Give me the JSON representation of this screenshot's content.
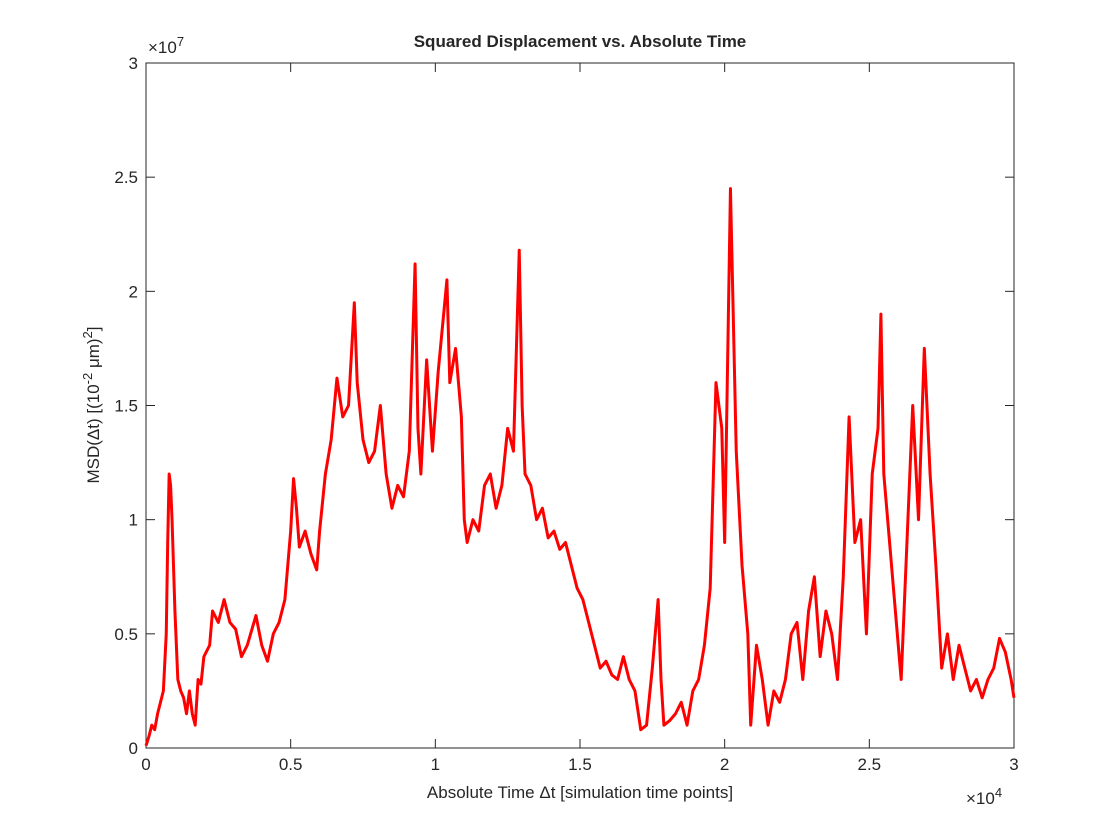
{
  "chart_data": {
    "type": "line",
    "title": "Squared Displacement vs. Absolute Time",
    "xlabel": "Absolute Time Δt [simulation time points]",
    "ylabel": [
      "MSD(Δt) [(10",
      "-2",
      " μm)",
      "2",
      "]"
    ],
    "x_multiplier": {
      "base": "×10",
      "exponent": "4"
    },
    "y_multiplier": {
      "base": "×10",
      "exponent": "7"
    },
    "xlim": [
      0,
      30000
    ],
    "ylim": [
      0,
      30000000
    ],
    "xticks": [
      0,
      {
        "value": 5000,
        "label": "0.5"
      },
      {
        "value": 10000,
        "label": "1"
      },
      {
        "value": 15000,
        "label": "1.5"
      },
      {
        "value": 20000,
        "label": "2"
      },
      {
        "value": 25000,
        "label": "2.5"
      },
      {
        "value": 30000,
        "label": "3"
      }
    ],
    "yticks": [
      0,
      {
        "value": 5000000,
        "label": "0.5"
      },
      {
        "value": 10000000,
        "label": "1"
      },
      {
        "value": 15000000,
        "label": "1.5"
      },
      {
        "value": 20000000,
        "label": "2"
      },
      {
        "value": 25000000,
        "label": "2.5"
      },
      {
        "value": 30000000,
        "label": "3"
      }
    ],
    "grid": false,
    "series": [
      {
        "color": "#ff0000",
        "x": [
          0,
          100,
          200,
          300,
          400,
          500,
          600,
          700,
          750,
          800,
          850,
          900,
          1000,
          1100,
          1200,
          1300,
          1400,
          1500,
          1600,
          1700,
          1800,
          1900,
          2000,
          2200,
          2300,
          2500,
          2700,
          2900,
          3100,
          3300,
          3500,
          3800,
          4000,
          4200,
          4400,
          4600,
          4800,
          5000,
          5100,
          5200,
          5300,
          5500,
          5700,
          5900,
          6000,
          6200,
          6400,
          6600,
          6800,
          7000,
          7200,
          7300,
          7500,
          7700,
          7900,
          8100,
          8300,
          8500,
          8700,
          8900,
          9100,
          9300,
          9400,
          9500,
          9700,
          9900,
          10100,
          10400,
          10500,
          10700,
          10900,
          11000,
          11100,
          11300,
          11500,
          11700,
          11900,
          12100,
          12300,
          12500,
          12700,
          12900,
          13000,
          13100,
          13300,
          13500,
          13700,
          13900,
          14100,
          14300,
          14500,
          14700,
          14900,
          15100,
          15300,
          15500,
          15700,
          15900,
          16100,
          16300,
          16500,
          16700,
          16900,
          17100,
          17300,
          17500,
          17700,
          17800,
          17900,
          18100,
          18300,
          18500,
          18700,
          18900,
          19100,
          19300,
          19500,
          19700,
          19900,
          20000,
          20200,
          20400,
          20600,
          20800,
          20900,
          21100,
          21300,
          21500,
          21700,
          21900,
          22100,
          22300,
          22500,
          22700,
          22900,
          23100,
          23300,
          23500,
          23700,
          23900,
          24100,
          24300,
          24500,
          24700,
          24900,
          25100,
          25300,
          25400,
          25500,
          25700,
          25900,
          26100,
          26300,
          26500,
          26700,
          26900,
          27100,
          27300,
          27500,
          27700,
          27900,
          28100,
          28300,
          28500,
          28700,
          28900,
          29100,
          29300,
          29500,
          29700,
          29900,
          30000
        ],
        "values": [
          100000,
          500000,
          1000000,
          800000,
          1500000,
          2000000,
          2500000,
          5000000,
          9000000,
          12000000,
          11500000,
          10000000,
          6000000,
          3000000,
          2500000,
          2200000,
          1500000,
          2500000,
          1500000,
          1000000,
          3000000,
          2800000,
          4000000,
          4500000,
          6000000,
          5500000,
          6500000,
          5500000,
          5200000,
          4000000,
          4500000,
          5800000,
          4500000,
          3800000,
          5000000,
          5500000,
          6500000,
          9500000,
          11800000,
          10500000,
          8800000,
          9500000,
          8500000,
          7800000,
          9500000,
          12000000,
          13500000,
          16200000,
          14500000,
          15000000,
          19500000,
          16000000,
          13500000,
          12500000,
          13000000,
          15000000,
          12000000,
          10500000,
          11500000,
          11000000,
          13000000,
          21200000,
          14000000,
          12000000,
          17000000,
          13000000,
          16500000,
          20500000,
          16000000,
          17500000,
          14500000,
          10000000,
          9000000,
          10000000,
          9500000,
          11500000,
          12000000,
          10500000,
          11500000,
          14000000,
          13000000,
          21800000,
          15000000,
          12000000,
          11500000,
          10000000,
          10500000,
          9200000,
          9500000,
          8700000,
          9000000,
          8000000,
          7000000,
          6500000,
          5500000,
          4500000,
          3500000,
          3800000,
          3200000,
          3000000,
          4000000,
          3000000,
          2500000,
          800000,
          1000000,
          3500000,
          6500000,
          3000000,
          1000000,
          1200000,
          1500000,
          2000000,
          1000000,
          2500000,
          3000000,
          4500000,
          7000000,
          16000000,
          14000000,
          9000000,
          24500000,
          13000000,
          8000000,
          5000000,
          1000000,
          4500000,
          3000000,
          1000000,
          2500000,
          2000000,
          3000000,
          5000000,
          5500000,
          3000000,
          6000000,
          7500000,
          4000000,
          6000000,
          5000000,
          3000000,
          7500000,
          14500000,
          9000000,
          10000000,
          5000000,
          12000000,
          14000000,
          19000000,
          12000000,
          9000000,
          6000000,
          3000000,
          9000000,
          15000000,
          10000000,
          17500000,
          12000000,
          8000000,
          3500000,
          5000000,
          3000000,
          4500000,
          3500000,
          2500000,
          3000000,
          2200000,
          3000000,
          3500000,
          4800000,
          4200000,
          3000000,
          2200000
        ]
      }
    ]
  }
}
